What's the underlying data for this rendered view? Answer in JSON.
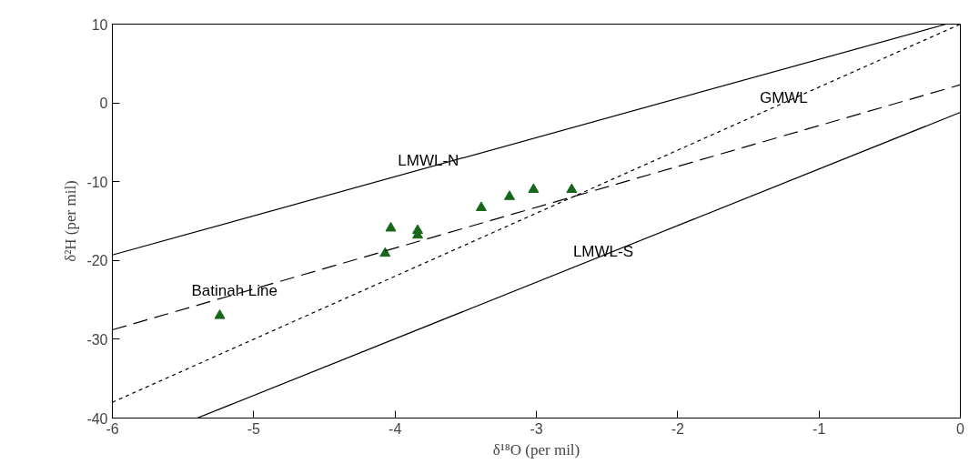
{
  "chart_data": {
    "type": "scatter",
    "xlabel": "δ¹⁸O (per mil)",
    "ylabel": "δ²H (per mil)",
    "xlim": [
      -6,
      0
    ],
    "ylim": [
      -40,
      10
    ],
    "xticks": [
      -6,
      -5,
      -4,
      -3,
      -2,
      -1,
      0
    ],
    "yticks": [
      -40,
      -30,
      -20,
      -10,
      0,
      10
    ],
    "grid": false,
    "series": [
      {
        "marker": "triangle",
        "color": "#16671a",
        "x": [
          -5.24,
          -4.07,
          -4.03,
          -3.84,
          -3.84,
          -3.39,
          -3.19,
          -3.02,
          -2.75
        ],
        "values": [
          -27.0,
          -19.1,
          -15.9,
          -16.2,
          -16.8,
          -13.3,
          -11.9,
          -11.0,
          -11.0
        ]
      },
      {
        "type": "line",
        "color": "#000000",
        "line_style": "solid",
        "x": [
          -6,
          -0.1
        ],
        "values": [
          -19.3,
          10
        ]
      },
      {
        "type": "line",
        "color": "#000000",
        "line_style": "dotted",
        "x": [
          -6,
          0
        ],
        "values": [
          -38,
          10
        ]
      },
      {
        "type": "line",
        "color": "#000000",
        "line_style": "dashed",
        "x": [
          -6,
          0
        ],
        "values": [
          -28.8,
          2.3
        ]
      },
      {
        "type": "line",
        "color": "#000000",
        "line_style": "solid",
        "x": [
          -5.4,
          0
        ],
        "values": [
          -40,
          -1.2
        ]
      }
    ],
    "annotations": [
      {
        "text": "LMWL-N",
        "x": -3.98,
        "y": -9.3
      },
      {
        "text": "GMWL",
        "x": -1.42,
        "y": -1.4
      },
      {
        "text": "LMWL-S",
        "x": -2.74,
        "y": -20.9
      },
      {
        "text": "Batinah Line",
        "x": -5.44,
        "y": -25.9
      }
    ]
  }
}
